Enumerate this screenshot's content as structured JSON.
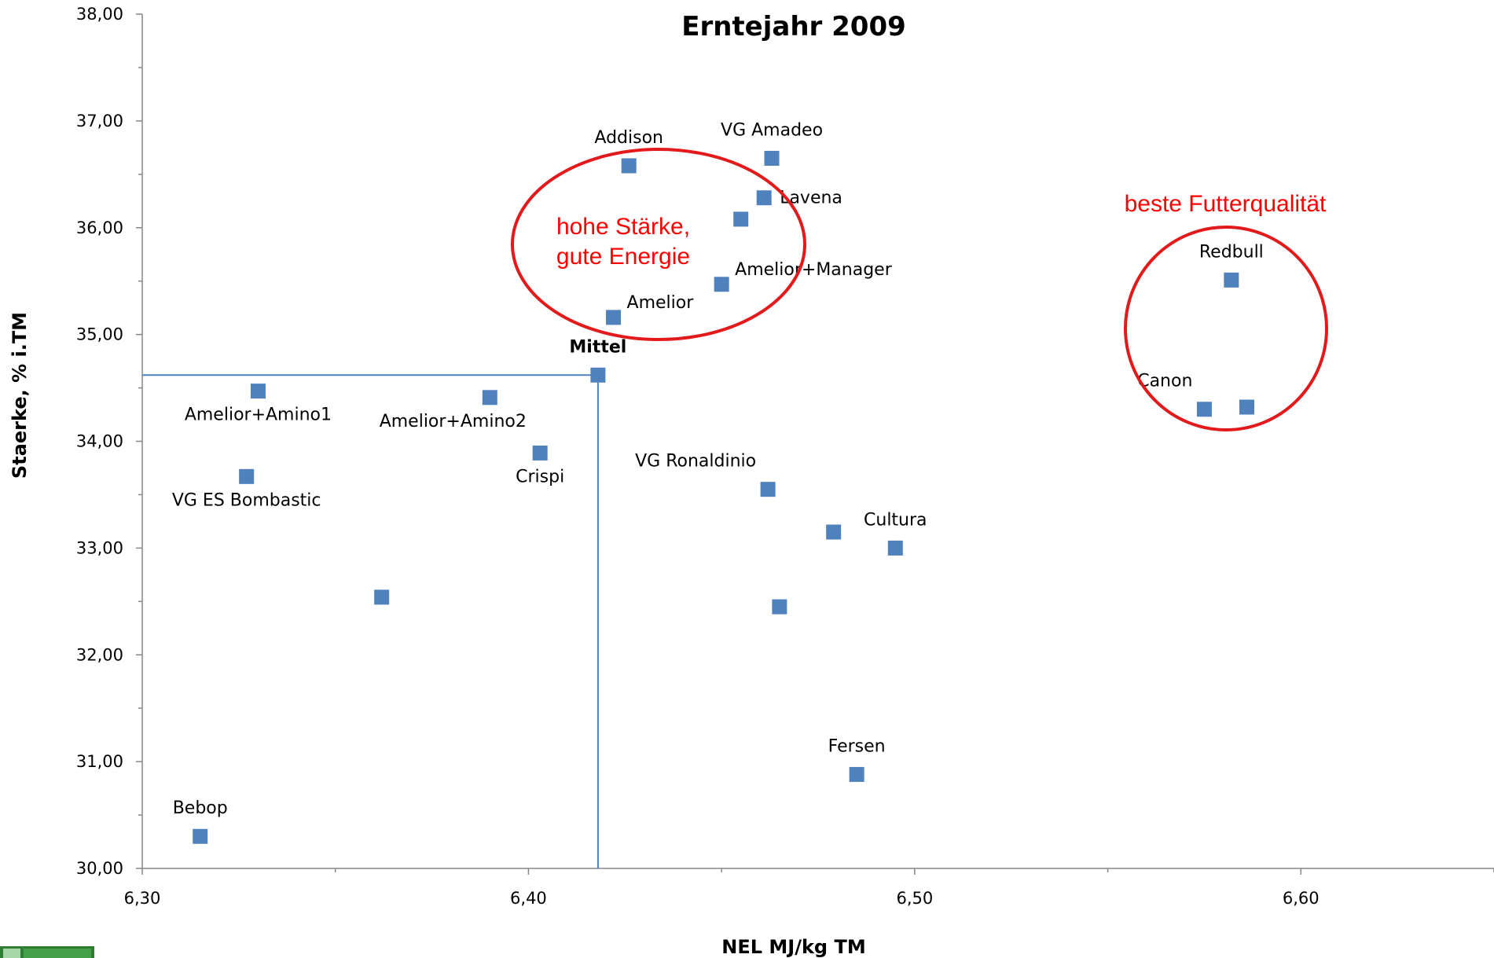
{
  "chart_data": {
    "type": "scatter",
    "title": "Erntejahr 2009",
    "xlabel": "NEL MJ/kg TM",
    "ylabel": "Staerke, % i.TM",
    "xlim": [
      6.3,
      6.65
    ],
    "ylim": [
      30.0,
      38.0
    ],
    "x_ticks": [
      6.3,
      6.4,
      6.5,
      6.6
    ],
    "x_tick_labels": [
      "6,30",
      "6,40",
      "6,50",
      "6,60"
    ],
    "y_ticks": [
      30,
      31,
      32,
      33,
      34,
      35,
      36,
      37,
      38
    ],
    "y_tick_labels": [
      "30,00",
      "31,00",
      "32,00",
      "33,00",
      "34,00",
      "35,00",
      "36,00",
      "37,00",
      "38,00"
    ],
    "grid": false,
    "marker_color": "#4F81BD",
    "points": [
      {
        "x": 6.315,
        "y": 30.3,
        "label": "Bebop",
        "label_pos": "above"
      },
      {
        "x": 6.327,
        "y": 33.67,
        "label": "VG ES Bombastic",
        "label_pos": "below"
      },
      {
        "x": 6.33,
        "y": 34.47,
        "label": "Amelior+Amino1",
        "label_pos": "below"
      },
      {
        "x": 6.362,
        "y": 32.54,
        "label": "",
        "label_pos": "none"
      },
      {
        "x": 6.39,
        "y": 34.41,
        "label": "Amelior+Amino2",
        "label_pos": "below-left"
      },
      {
        "x": 6.403,
        "y": 33.89,
        "label": "Crispi",
        "label_pos": "below"
      },
      {
        "x": 6.418,
        "y": 34.62,
        "label": "Mittel",
        "label_pos": "above",
        "bold": true
      },
      {
        "x": 6.422,
        "y": 35.16,
        "label": "Amelior",
        "label_pos": "above-right"
      },
      {
        "x": 6.426,
        "y": 36.58,
        "label": "Addison",
        "label_pos": "above"
      },
      {
        "x": 6.45,
        "y": 35.47,
        "label": "Amelior+Manager",
        "label_pos": "above-right"
      },
      {
        "x": 6.455,
        "y": 36.08,
        "label": "",
        "label_pos": "none"
      },
      {
        "x": 6.461,
        "y": 36.28,
        "label": "Lavena",
        "label_pos": "right"
      },
      {
        "x": 6.463,
        "y": 36.65,
        "label": "VG Amadeo",
        "label_pos": "above"
      },
      {
        "x": 6.462,
        "y": 33.55,
        "label": "VG Ronaldinio",
        "label_pos": "above-left"
      },
      {
        "x": 6.465,
        "y": 32.45,
        "label": "",
        "label_pos": "none"
      },
      {
        "x": 6.479,
        "y": 33.15,
        "label": "",
        "label_pos": "none"
      },
      {
        "x": 6.485,
        "y": 30.88,
        "label": "Fersen",
        "label_pos": "above"
      },
      {
        "x": 6.495,
        "y": 33.0,
        "label": "Cultura",
        "label_pos": "above"
      },
      {
        "x": 6.575,
        "y": 34.3,
        "label": "Canon",
        "label_pos": "above-left"
      },
      {
        "x": 6.582,
        "y": 35.51,
        "label": "Redbull",
        "label_pos": "above"
      },
      {
        "x": 6.586,
        "y": 34.32,
        "label": "",
        "label_pos": "none"
      }
    ],
    "reference_lines": {
      "x": 6.418,
      "y": 34.62,
      "color": "#4F81BD"
    },
    "annotations": [
      {
        "text_lines": [
          "hohe Stärke,",
          "gute Energie"
        ],
        "color": "#FF0000"
      },
      {
        "text_lines": [
          "beste Futterqualität"
        ],
        "color": "#FF0000"
      }
    ],
    "ellipse_color": "#E31A1C"
  }
}
